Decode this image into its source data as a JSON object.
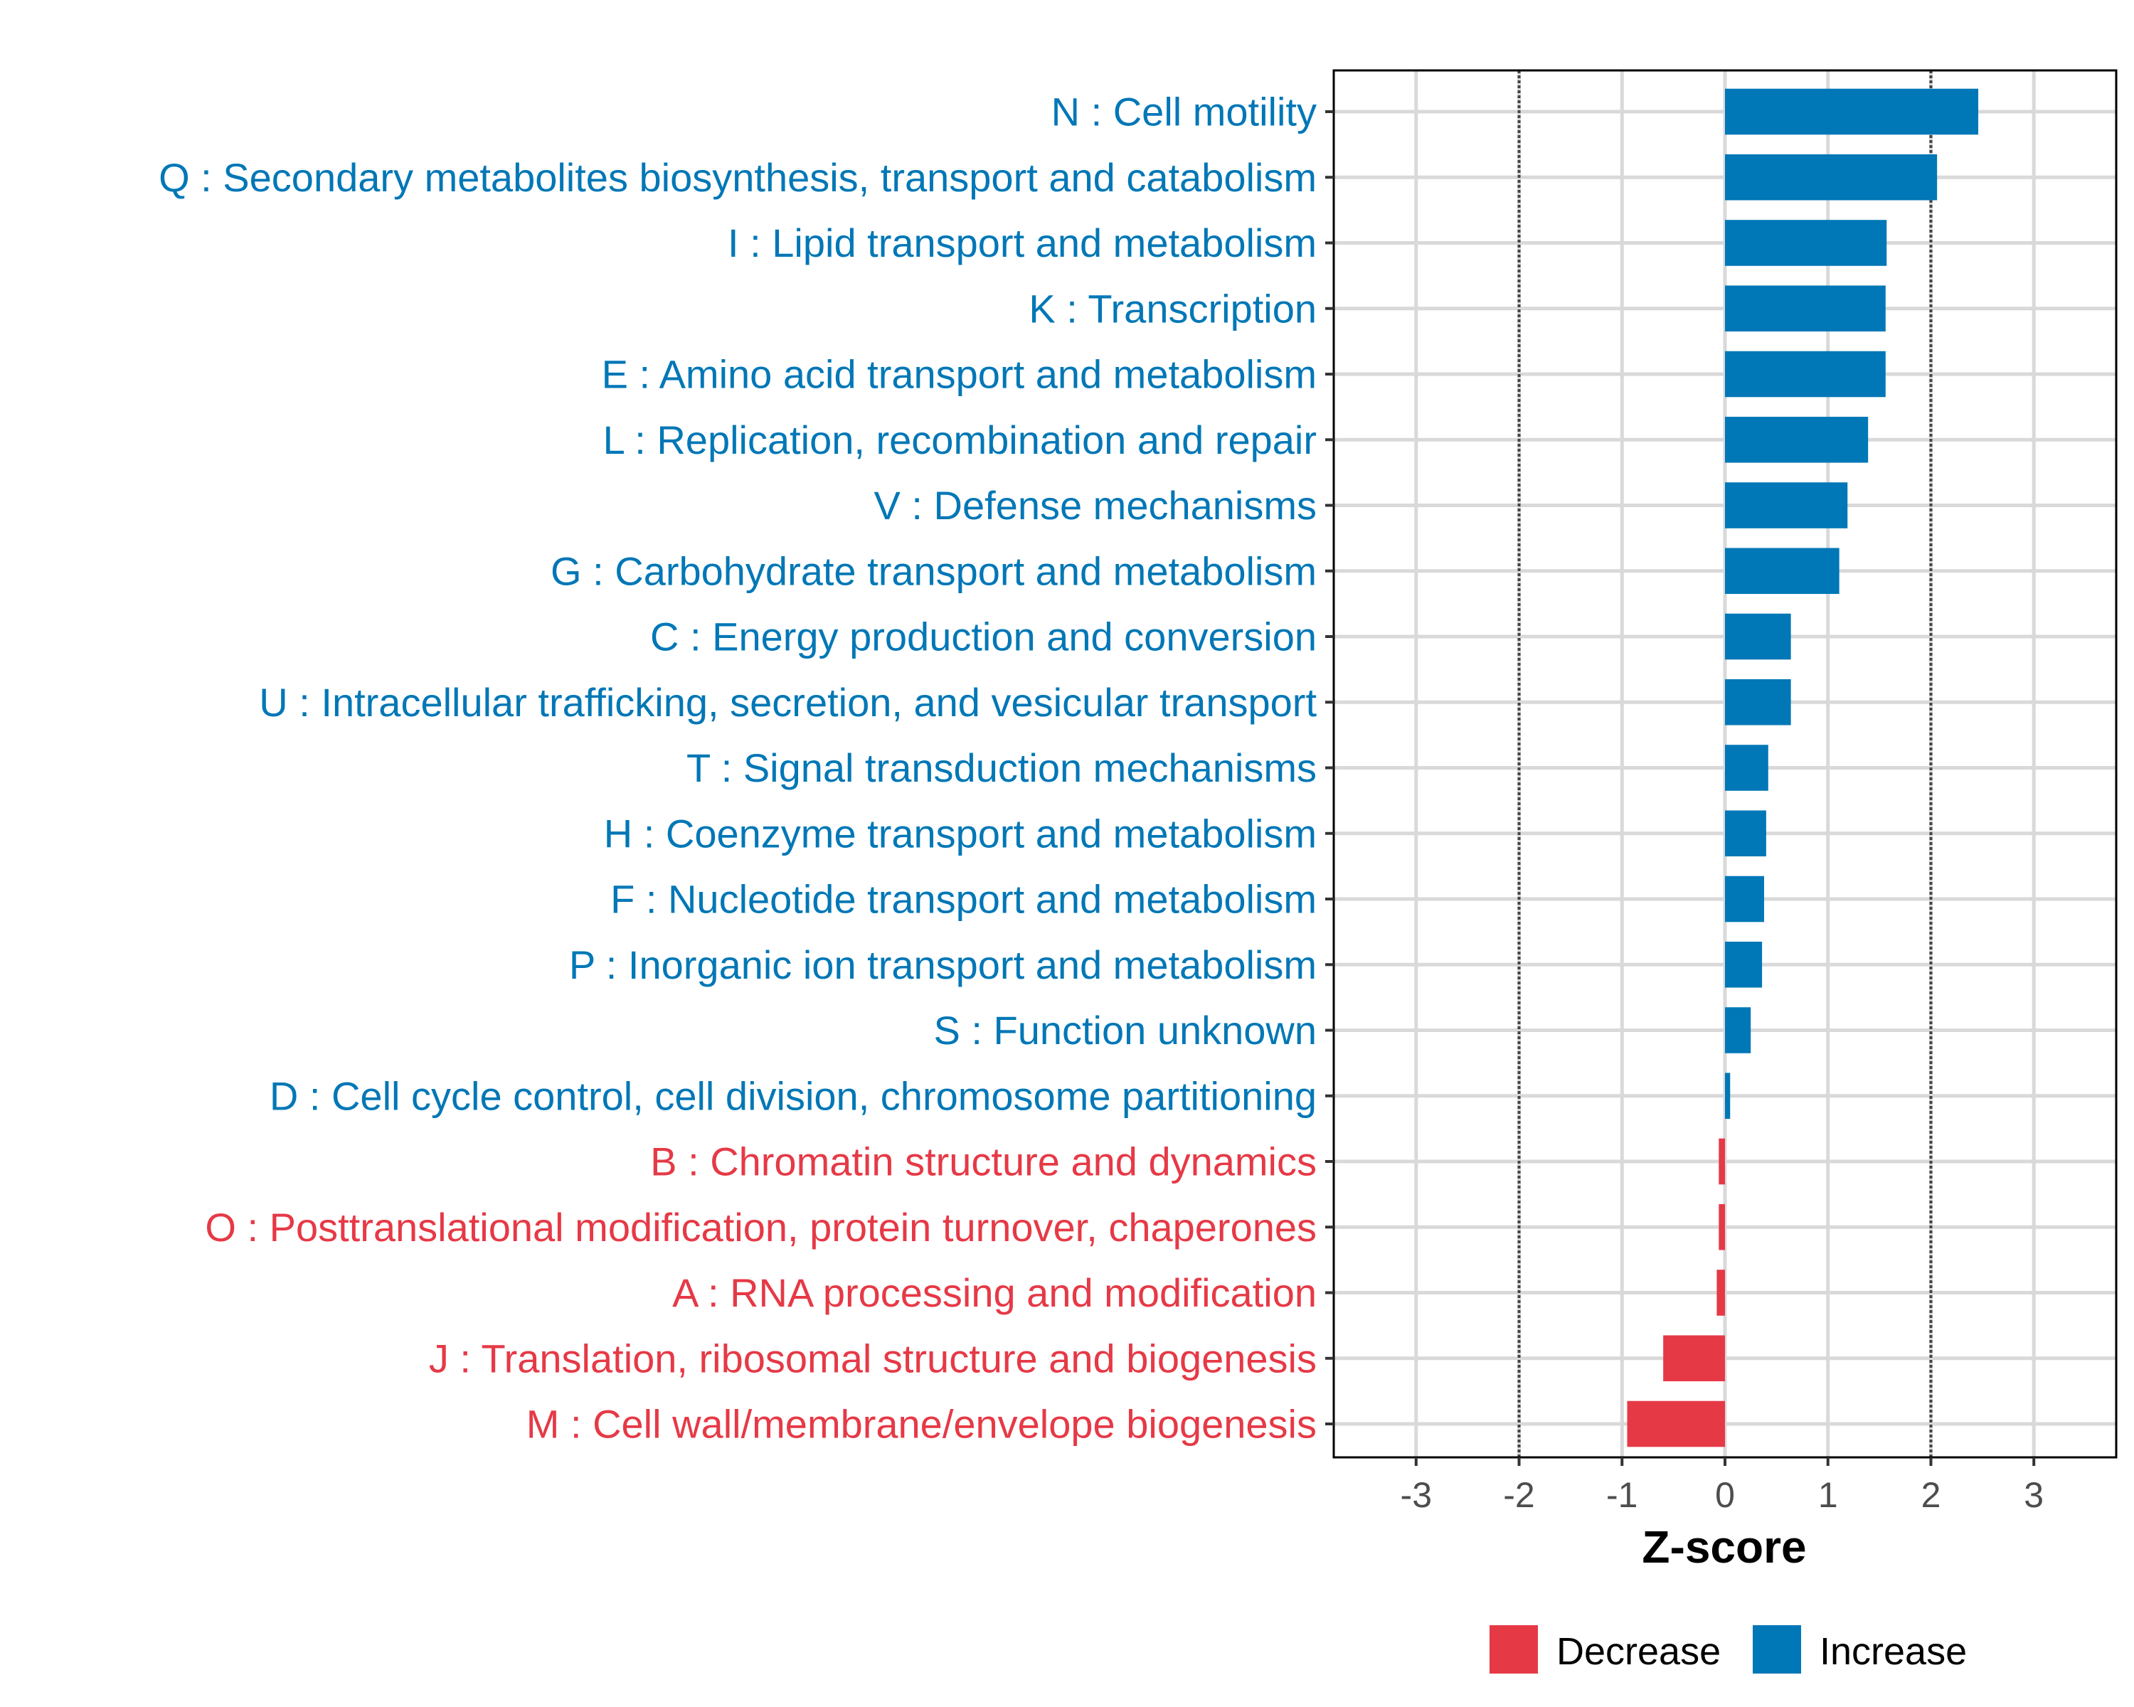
{
  "chart_data": {
    "type": "bar",
    "orientation": "horizontal",
    "title": "",
    "xlabel": "Z-score",
    "ylabel": "",
    "xlim": [
      -3.8,
      3.8
    ],
    "x_ticks": [
      -3,
      -2,
      -1,
      0,
      1,
      2,
      3
    ],
    "x_tick_labels": [
      "-3",
      "-2",
      "-1",
      "0",
      "1",
      "2",
      "3"
    ],
    "reference_lines": [
      -2,
      2
    ],
    "grid": true,
    "legend_position": "bottom",
    "legend": [
      {
        "name": "Decrease",
        "color": "#E63946"
      },
      {
        "name": "Increase",
        "color": "#0077B6"
      }
    ],
    "colors": {
      "Decrease": "#E63946",
      "Increase": "#0077B6"
    },
    "categories": [
      "N : Cell motility",
      "Q : Secondary metabolites biosynthesis, transport and catabolism",
      "I : Lipid transport and metabolism",
      "K : Transcription",
      "E : Amino acid transport and metabolism",
      "L : Replication, recombination and repair",
      "V : Defense mechanisms",
      "G : Carbohydrate transport and metabolism",
      "C : Energy production and conversion",
      "U : Intracellular trafficking, secretion, and vesicular transport",
      "T : Signal transduction mechanisms",
      "H : Coenzyme transport and metabolism",
      "F : Nucleotide transport and metabolism",
      "P : Inorganic ion transport and metabolism",
      "S : Function unknown",
      "D : Cell cycle control, cell division, chromosome partitioning",
      "B : Chromatin structure and dynamics",
      "O : Posttranslational modification, protein turnover, chaperones",
      "A : RNA processing and modification",
      "J : Translation, ribosomal structure and biogenesis",
      "M : Cell wall/membrane/envelope biogenesis"
    ],
    "values": [
      2.46,
      2.06,
      1.57,
      1.56,
      1.56,
      1.39,
      1.19,
      1.11,
      0.64,
      0.64,
      0.42,
      0.4,
      0.38,
      0.36,
      0.25,
      0.05,
      -0.06,
      -0.06,
      -0.08,
      -0.6,
      -0.95
    ],
    "groups": [
      "Increase",
      "Increase",
      "Increase",
      "Increase",
      "Increase",
      "Increase",
      "Increase",
      "Increase",
      "Increase",
      "Increase",
      "Increase",
      "Increase",
      "Increase",
      "Increase",
      "Increase",
      "Increase",
      "Decrease",
      "Decrease",
      "Decrease",
      "Decrease",
      "Decrease"
    ]
  }
}
